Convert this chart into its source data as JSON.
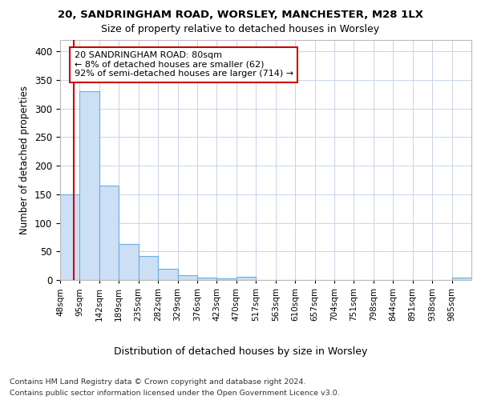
{
  "title1": "20, SANDRINGHAM ROAD, WORSLEY, MANCHESTER, M28 1LX",
  "title2": "Size of property relative to detached houses in Worsley",
  "xlabel": "Distribution of detached houses by size in Worsley",
  "ylabel": "Number of detached properties",
  "footnote1": "Contains HM Land Registry data © Crown copyright and database right 2024.",
  "footnote2": "Contains public sector information licensed under the Open Government Licence v3.0.",
  "bin_labels": [
    "48sqm",
    "95sqm",
    "142sqm",
    "189sqm",
    "235sqm",
    "282sqm",
    "329sqm",
    "376sqm",
    "423sqm",
    "470sqm",
    "517sqm",
    "563sqm",
    "610sqm",
    "657sqm",
    "704sqm",
    "751sqm",
    "798sqm",
    "844sqm",
    "891sqm",
    "938sqm",
    "985sqm"
  ],
  "values": [
    150,
    330,
    165,
    63,
    42,
    20,
    9,
    4,
    3,
    5,
    0,
    0,
    0,
    0,
    0,
    0,
    0,
    0,
    0,
    0,
    4
  ],
  "bar_color": "#ccdff5",
  "bar_edge_color": "#6aaee0",
  "property_line_color": "#cc0000",
  "annotation_text": "20 SANDRINGHAM ROAD: 80sqm\n← 8% of detached houses are smaller (62)\n92% of semi-detached houses are larger (714) →",
  "annotation_box_color": "#ffffff",
  "annotation_box_edge": "#cc0000",
  "ylim": [
    0,
    420
  ],
  "yticks": [
    0,
    50,
    100,
    150,
    200,
    250,
    300,
    350,
    400
  ],
  "grid_color": "#c8d4e8",
  "background_color": "#ffffff"
}
